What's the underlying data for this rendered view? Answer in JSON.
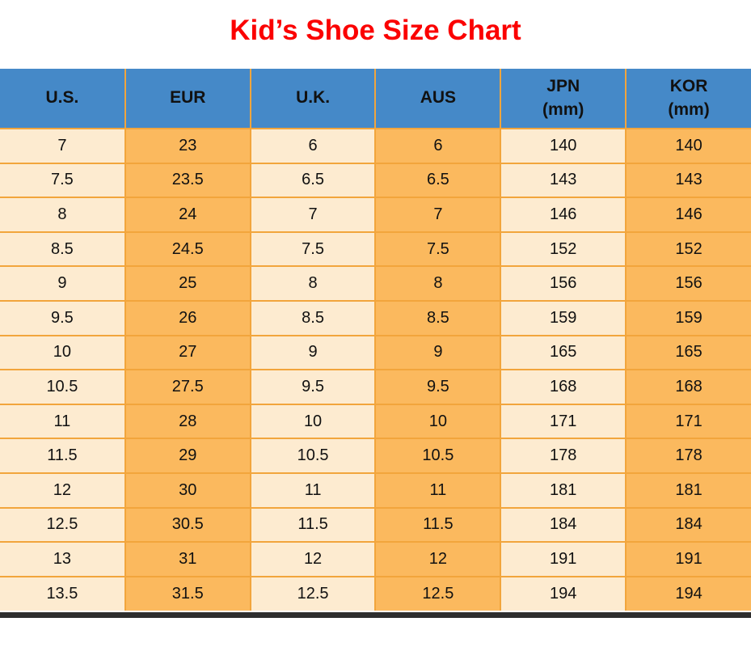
{
  "title": "Kid’s Shoe Size Chart",
  "colors": {
    "title_color": "#fb0000",
    "header_bg": "#4589c8",
    "col_light": "#fdebd0",
    "col_dark": "#fbb95e",
    "border_color": "#f2a53c",
    "bottom_bar": "#2e2e2e",
    "text_color": "#111111"
  },
  "table": {
    "columns": [
      {
        "label": "U.S.",
        "sublabel": ""
      },
      {
        "label": "EUR",
        "sublabel": ""
      },
      {
        "label": "U.K.",
        "sublabel": ""
      },
      {
        "label": "AUS",
        "sublabel": ""
      },
      {
        "label": "JPN",
        "sublabel": "(mm)"
      },
      {
        "label": "KOR",
        "sublabel": "(mm)"
      }
    ],
    "rows": [
      [
        "7",
        "23",
        "6",
        "6",
        "140",
        "140"
      ],
      [
        "7.5",
        "23.5",
        "6.5",
        "6.5",
        "143",
        "143"
      ],
      [
        "8",
        "24",
        "7",
        "7",
        "146",
        "146"
      ],
      [
        "8.5",
        "24.5",
        "7.5",
        "7.5",
        "152",
        "152"
      ],
      [
        "9",
        "25",
        "8",
        "8",
        "156",
        "156"
      ],
      [
        "9.5",
        "26",
        "8.5",
        "8.5",
        "159",
        "159"
      ],
      [
        "10",
        "27",
        "9",
        "9",
        "165",
        "165"
      ],
      [
        "10.5",
        "27.5",
        "9.5",
        "9.5",
        "168",
        "168"
      ],
      [
        "11",
        "28",
        "10",
        "10",
        "171",
        "171"
      ],
      [
        "11.5",
        "29",
        "10.5",
        "10.5",
        "178",
        "178"
      ],
      [
        "12",
        "30",
        "11",
        "11",
        "181",
        "181"
      ],
      [
        "12.5",
        "30.5",
        "11.5",
        "11.5",
        "184",
        "184"
      ],
      [
        "13",
        "31",
        "12",
        "12",
        "191",
        "191"
      ],
      [
        "13.5",
        "31.5",
        "12.5",
        "12.5",
        "194",
        "194"
      ]
    ]
  },
  "chart_data": {
    "type": "table",
    "title": "Kid’s Shoe Size Chart",
    "columns": [
      "U.S.",
      "EUR",
      "U.K.",
      "AUS",
      "JPN (mm)",
      "KOR (mm)"
    ],
    "rows": [
      [
        7,
        23,
        6,
        6,
        140,
        140
      ],
      [
        7.5,
        23.5,
        6.5,
        6.5,
        143,
        143
      ],
      [
        8,
        24,
        7,
        7,
        146,
        146
      ],
      [
        8.5,
        24.5,
        7.5,
        7.5,
        152,
        152
      ],
      [
        9,
        25,
        8,
        8,
        156,
        156
      ],
      [
        9.5,
        26,
        8.5,
        8.5,
        159,
        159
      ],
      [
        10,
        27,
        9,
        9,
        165,
        165
      ],
      [
        10.5,
        27.5,
        9.5,
        9.5,
        168,
        168
      ],
      [
        11,
        28,
        10,
        10,
        171,
        171
      ],
      [
        11.5,
        29,
        10.5,
        10.5,
        178,
        178
      ],
      [
        12,
        30,
        11,
        11,
        181,
        181
      ],
      [
        12.5,
        30.5,
        11.5,
        11.5,
        184,
        184
      ],
      [
        13,
        31,
        12,
        12,
        191,
        191
      ],
      [
        13.5,
        31.5,
        12.5,
        12.5,
        194,
        194
      ]
    ]
  }
}
